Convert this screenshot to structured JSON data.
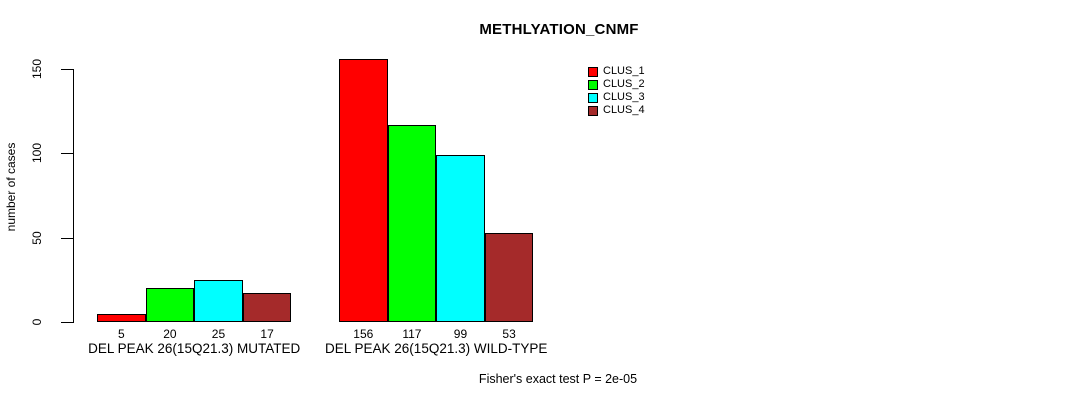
{
  "title": "METHLYATION_CNMF",
  "y_axis": {
    "label": "number of cases",
    "ticks": [
      0,
      50,
      100,
      150
    ]
  },
  "annotation": "Fisher's exact test P = 2e-05",
  "legend": {
    "position": "top-right",
    "items": [
      {
        "label": "CLUS_1",
        "color": "#ff0000"
      },
      {
        "label": "CLUS_2",
        "color": "#00ff00"
      },
      {
        "label": "CLUS_3",
        "color": "#00ffff"
      },
      {
        "label": "CLUS_4",
        "color": "#a52a2a"
      }
    ]
  },
  "chart_data": {
    "type": "bar",
    "title": "METHLYATION_CNMF",
    "xlabel": "",
    "ylabel": "number of cases",
    "ylim": [
      0,
      160
    ],
    "yticks": [
      0,
      50,
      100,
      150
    ],
    "grid": false,
    "legend_position": "top-right",
    "series": [
      "CLUS_1",
      "CLUS_2",
      "CLUS_3",
      "CLUS_4"
    ],
    "colors": [
      "#ff0000",
      "#00ff00",
      "#00ffff",
      "#a52a2a"
    ],
    "groups": [
      {
        "label": "DEL PEAK 26(15Q21.3) MUTATED",
        "values": [
          5,
          20,
          25,
          17
        ]
      },
      {
        "label": "DEL PEAK 26(15Q21.3) WILD-TYPE",
        "values": [
          156,
          117,
          99,
          53
        ]
      }
    ],
    "bar_value_labels": [
      [
        5,
        20,
        25,
        17
      ],
      [
        156,
        117,
        99,
        53
      ]
    ],
    "annotation": "Fisher's exact test P = 2e-05"
  }
}
